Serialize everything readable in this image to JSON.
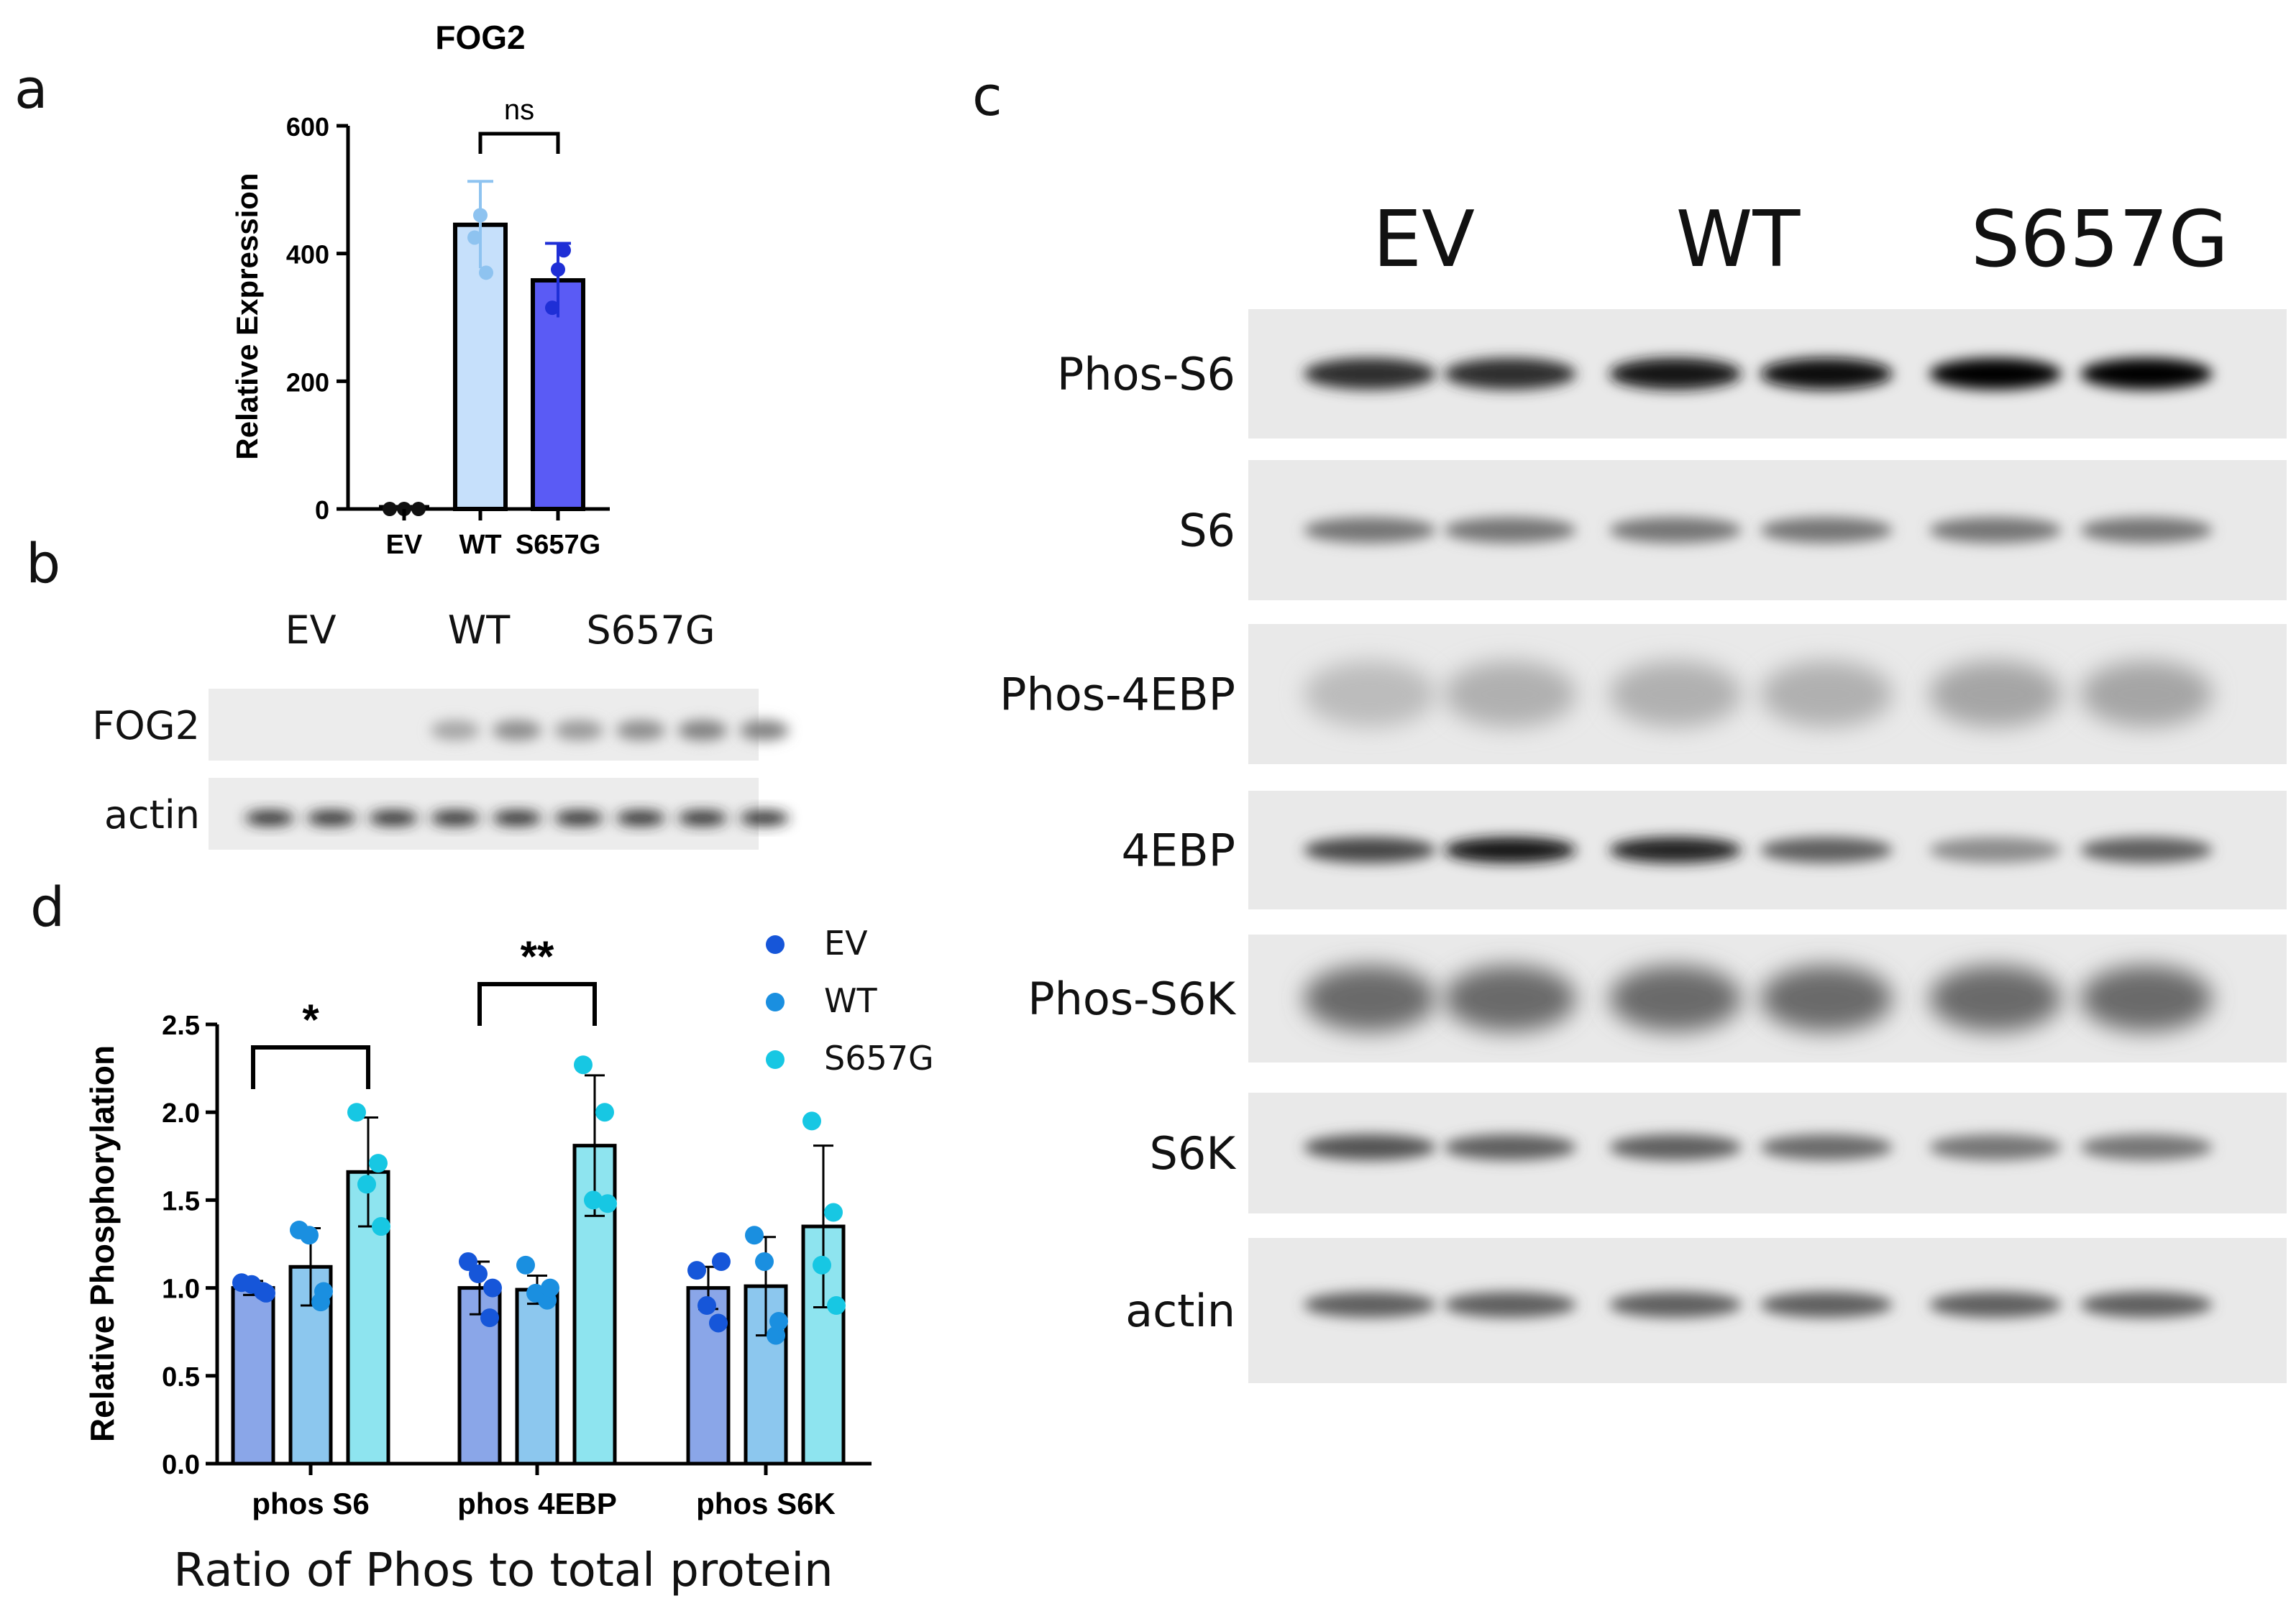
{
  "panels": {
    "a": {
      "letter": "a"
    },
    "b": {
      "letter": "b"
    },
    "c": {
      "letter": "c"
    },
    "d": {
      "letter": "d"
    }
  },
  "chart_data": [
    {
      "id": "a",
      "type": "bar",
      "title": "FOG2",
      "ylabel": "Relative Expression",
      "xlabel": "",
      "categories": [
        "EV",
        "WT",
        "S657G"
      ],
      "values": [
        0,
        445,
        358
      ],
      "errors": [
        2,
        68,
        58
      ],
      "points": [
        [
          0,
          0,
          0
        ],
        [
          460,
          425,
          370
        ],
        [
          375,
          315,
          405
        ]
      ],
      "ylim": [
        0,
        600
      ],
      "yticks": [
        0,
        200,
        400,
        600
      ],
      "ytick_labels": [
        "0",
        "200",
        "400",
        "600"
      ],
      "bar_colors": [
        "#ffffff",
        "#c6e0fb",
        "#5a5bf5"
      ],
      "point_colors": [
        "#111111",
        "#8ec3f0",
        "#1f2fd6"
      ],
      "comparisons": [
        {
          "from": "WT",
          "to": "S657G",
          "label": "ns"
        }
      ]
    },
    {
      "id": "d",
      "type": "bar",
      "ylabel": "Relative Phosphorylation",
      "xlabel": "Ratio of Phos to total protein",
      "categories": [
        "phos S6",
        "phos 4EBP",
        "phos S6K"
      ],
      "ylim": [
        0,
        2.5
      ],
      "yticks": [
        0,
        0.5,
        1.0,
        1.5,
        2.0,
        2.5
      ],
      "ytick_labels": [
        "0.0",
        "0.5",
        "1.0",
        "1.5",
        "2.0",
        "2.5"
      ],
      "grid": false,
      "legend_position": "top-right",
      "series": [
        {
          "name": "EV",
          "values": [
            1.0,
            1.0,
            1.0
          ],
          "errors": [
            0.04,
            0.15,
            0.12
          ],
          "points": [
            [
              1.03,
              0.98,
              1.02,
              0.97
            ],
            [
              1.15,
              0.83,
              1.08,
              1.0
            ],
            [
              1.1,
              0.8,
              0.9,
              1.15
            ]
          ],
          "bar_color": "#8aa6e8",
          "point_color": "#1656d9"
        },
        {
          "name": "WT",
          "values": [
            1.12,
            0.99,
            1.01
          ],
          "errors": [
            0.22,
            0.08,
            0.28
          ],
          "points": [
            [
              1.33,
              0.92,
              1.3,
              0.98
            ],
            [
              1.13,
              0.93,
              0.97,
              1.0
            ],
            [
              1.3,
              0.73,
              1.15,
              0.81
            ]
          ],
          "bar_color": "#8cc7ee",
          "point_color": "#1a8fe0"
        },
        {
          "name": "S657G",
          "values": [
            1.66,
            1.81,
            1.35
          ],
          "errors": [
            0.31,
            0.4,
            0.46
          ],
          "points": [
            [
              2.0,
              1.71,
              1.59,
              1.35
            ],
            [
              2.27,
              2.0,
              1.5,
              1.48
            ],
            [
              1.95,
              1.43,
              1.13,
              0.9
            ]
          ],
          "bar_color": "#8ee4ef",
          "point_color": "#17c7e3"
        }
      ],
      "comparisons": [
        {
          "category": "phos S6",
          "from": "EV",
          "to": "S657G",
          "label": "*"
        },
        {
          "category": "phos 4EBP",
          "from": "EV",
          "to": "S657G",
          "label": "**"
        }
      ]
    }
  ],
  "blots": {
    "b": {
      "lane_labels": [
        "EV",
        "WT",
        "S657G"
      ],
      "rows": [
        {
          "label": "FOG2",
          "lane_intensities": [
            0,
            0,
            0,
            0.35,
            0.45,
            0.4,
            0.45,
            0.5,
            0.5
          ]
        },
        {
          "label": "actin",
          "lane_intensities": [
            0.85,
            0.85,
            0.85,
            0.85,
            0.85,
            0.85,
            0.85,
            0.85,
            0.85
          ]
        }
      ]
    },
    "c": {
      "lane_labels": [
        "EV",
        "WT",
        "S657G"
      ],
      "rows": [
        {
          "label": "Phos-S6",
          "lane_intensities": [
            0.8,
            0.8,
            0.9,
            0.95,
            1.0,
            1.0
          ]
        },
        {
          "label": "S6",
          "lane_intensities": [
            0.5,
            0.5,
            0.5,
            0.5,
            0.5,
            0.5
          ]
        },
        {
          "label": "Phos-4EBP",
          "lane_intensities": [
            0.2,
            0.25,
            0.25,
            0.25,
            0.3,
            0.3
          ]
        },
        {
          "label": "4EBP",
          "lane_intensities": [
            0.7,
            0.9,
            0.85,
            0.6,
            0.4,
            0.6
          ]
        },
        {
          "label": "Phos-S6K",
          "lane_intensities": [
            0.55,
            0.55,
            0.55,
            0.55,
            0.55,
            0.55
          ]
        },
        {
          "label": "S6K",
          "lane_intensities": [
            0.65,
            0.6,
            0.6,
            0.55,
            0.5,
            0.5
          ]
        },
        {
          "label": "actin",
          "lane_intensities": [
            0.6,
            0.6,
            0.6,
            0.6,
            0.6,
            0.6
          ]
        }
      ]
    }
  }
}
